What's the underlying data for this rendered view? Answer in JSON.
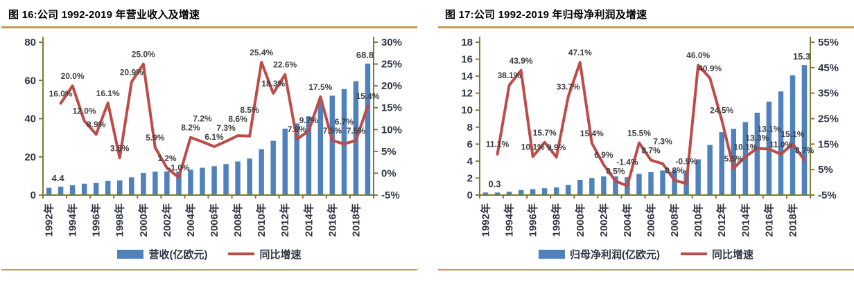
{
  "page": {
    "background": "#ffffff"
  },
  "colors": {
    "bar_fill": "#4f81bd",
    "line_stroke": "#be4b48",
    "axis_stroke": "#7e7a33",
    "gold_rule": "#c49b50",
    "axis_label_text": "#2f3542",
    "data_label_text": "#404040",
    "title_text": "#000000"
  },
  "chart_data": [
    {
      "type": "bar+line",
      "title": "图 16:公司 1992-2019 年营业收入及增速",
      "years": [
        1992,
        1993,
        1994,
        1995,
        1996,
        1997,
        1998,
        1999,
        2000,
        2001,
        2002,
        2003,
        2004,
        2005,
        2006,
        2007,
        2008,
        2009,
        2010,
        2011,
        2012,
        2013,
        2014,
        2015,
        2016,
        2017,
        2018,
        2019
      ],
      "x_tick_labels": [
        "1992年",
        "1994年",
        "1996年",
        "1998年",
        "2000年",
        "2002年",
        "2004年",
        "2006年",
        "2008年",
        "2010年",
        "2012年",
        "2014年",
        "2016年",
        "2018年"
      ],
      "bars": {
        "name": "营收(亿欧元)",
        "axis": "left",
        "values": [
          3.8,
          4.4,
          5.2,
          5.9,
          6.4,
          7.4,
          7.7,
          9.3,
          11.6,
          12.3,
          12.4,
          12.3,
          13.3,
          14.3,
          15.1,
          16.2,
          17.6,
          19.1,
          24.0,
          28.4,
          34.8,
          37.5,
          41.2,
          48.4,
          52.0,
          55.5,
          59.6,
          68.8
        ],
        "shown_labels": {
          "1993": "4.4",
          "2019": "68.8"
        }
      },
      "line": {
        "name": "同比增速",
        "axis": "right",
        "start_year": 1993,
        "values": [
          16.0,
          20.0,
          12.0,
          8.9,
          16.1,
          3.5,
          20.9,
          25.0,
          5.9,
          1.2,
          -1.0,
          8.2,
          7.2,
          6.1,
          7.3,
          8.6,
          8.5,
          25.4,
          18.3,
          22.6,
          7.8,
          9.7,
          17.5,
          7.5,
          6.7,
          7.5,
          15.4
        ],
        "labels": [
          "16.0%",
          "20.0%",
          "12.0%",
          "8.9%",
          "16.1%",
          "3.5%",
          "20.9%",
          "25.0%",
          "5.9%",
          "1.2%",
          "-1.0%",
          "8.2%",
          "7.2%",
          "6.1%",
          "7.3%",
          "8.6%",
          "8.5%",
          "25.4%",
          "18.3%",
          "22.6%",
          "7.8%",
          "9.7%",
          "17.5%",
          "7.5%",
          "6.7%",
          "7.5%",
          "15.4%"
        ]
      },
      "left_axis": {
        "min": 0,
        "max": 80,
        "tick_values": [
          0,
          20,
          40,
          60,
          80
        ],
        "tick_labels": [
          "0",
          "20",
          "40",
          "60",
          "80"
        ]
      },
      "right_axis": {
        "min": -5,
        "max": 30,
        "tick_values": [
          -5,
          0,
          5,
          10,
          15,
          20,
          25,
          30
        ],
        "tick_labels": [
          "-5%",
          "0%",
          "5%",
          "10%",
          "15%",
          "20%",
          "25%",
          "30%"
        ]
      },
      "legend": [
        {
          "swatch": "bar",
          "label": "营收(亿欧元)"
        },
        {
          "swatch": "line",
          "label": "同比增速"
        }
      ]
    },
    {
      "type": "bar+line",
      "title": "图 17:公司 1992-2019 年归母净利润及增速",
      "years": [
        1992,
        1993,
        1994,
        1995,
        1996,
        1997,
        1998,
        1999,
        2000,
        2001,
        2002,
        2003,
        2004,
        2005,
        2006,
        2007,
        2008,
        2009,
        2010,
        2011,
        2012,
        2013,
        2014,
        2015,
        2016,
        2017,
        2018,
        2019
      ],
      "x_tick_labels": [
        "1992年",
        "1994年",
        "1996年",
        "1998年",
        "2000年",
        "2002年",
        "2004年",
        "2006年",
        "2008年",
        "2010年",
        "2012年",
        "2014年",
        "2016年",
        "2018年"
      ],
      "bars": {
        "name": "归母净利润(亿欧元)",
        "axis": "left",
        "values": [
          0.3,
          0.3,
          0.4,
          0.6,
          0.7,
          0.8,
          0.9,
          1.2,
          1.8,
          2.0,
          2.2,
          2.2,
          2.1,
          2.5,
          2.7,
          2.9,
          2.9,
          2.9,
          4.2,
          5.9,
          7.4,
          7.8,
          8.6,
          9.7,
          11.0,
          12.2,
          14.1,
          15.3
        ],
        "shown_labels": {
          "1993": "0.3",
          "2019": "15.3"
        }
      },
      "line": {
        "name": "同比增速",
        "axis": "right",
        "start_year": 1993,
        "values": [
          11.1,
          38.1,
          43.9,
          10.1,
          15.7,
          9.9,
          33.7,
          47.1,
          15.4,
          6.9,
          0.5,
          -1.4,
          15.5,
          8.7,
          7.3,
          0.8,
          -0.5,
          46.0,
          40.9,
          24.5,
          5.5,
          10.1,
          13.3,
          13.1,
          11.0,
          15.1,
          8.7
        ],
        "labels": [
          "11.1%",
          "38.1%",
          "43.9%",
          "10.1%",
          "15.7%",
          "9.9%",
          "33.7%",
          "47.1%",
          "15.4%",
          "6.9%",
          "0.5%",
          "-1.4%",
          "15.5%",
          "8.7%",
          "7.3%",
          "0.8%",
          "-0.5%",
          "46.0%",
          "40.9%",
          "24.5%",
          "5.5%",
          "10.1%",
          "13.3%",
          "13.1%",
          "11.0%",
          "15.1%",
          "8.7%"
        ]
      },
      "left_axis": {
        "min": 0,
        "max": 18,
        "tick_values": [
          0,
          2,
          4,
          6,
          8,
          10,
          12,
          14,
          16,
          18
        ],
        "tick_labels": [
          "0",
          "2",
          "4",
          "6",
          "8",
          "10",
          "12",
          "14",
          "16",
          "18"
        ]
      },
      "right_axis": {
        "min": -5,
        "max": 55,
        "tick_values": [
          -5,
          5,
          15,
          25,
          35,
          45,
          55
        ],
        "tick_labels": [
          "-5%",
          "5%",
          "15%",
          "25%",
          "35%",
          "45%",
          "55%"
        ]
      },
      "legend": [
        {
          "swatch": "bar",
          "label": "归母净利润(亿欧元)"
        },
        {
          "swatch": "line",
          "label": "同比增速"
        }
      ]
    }
  ]
}
